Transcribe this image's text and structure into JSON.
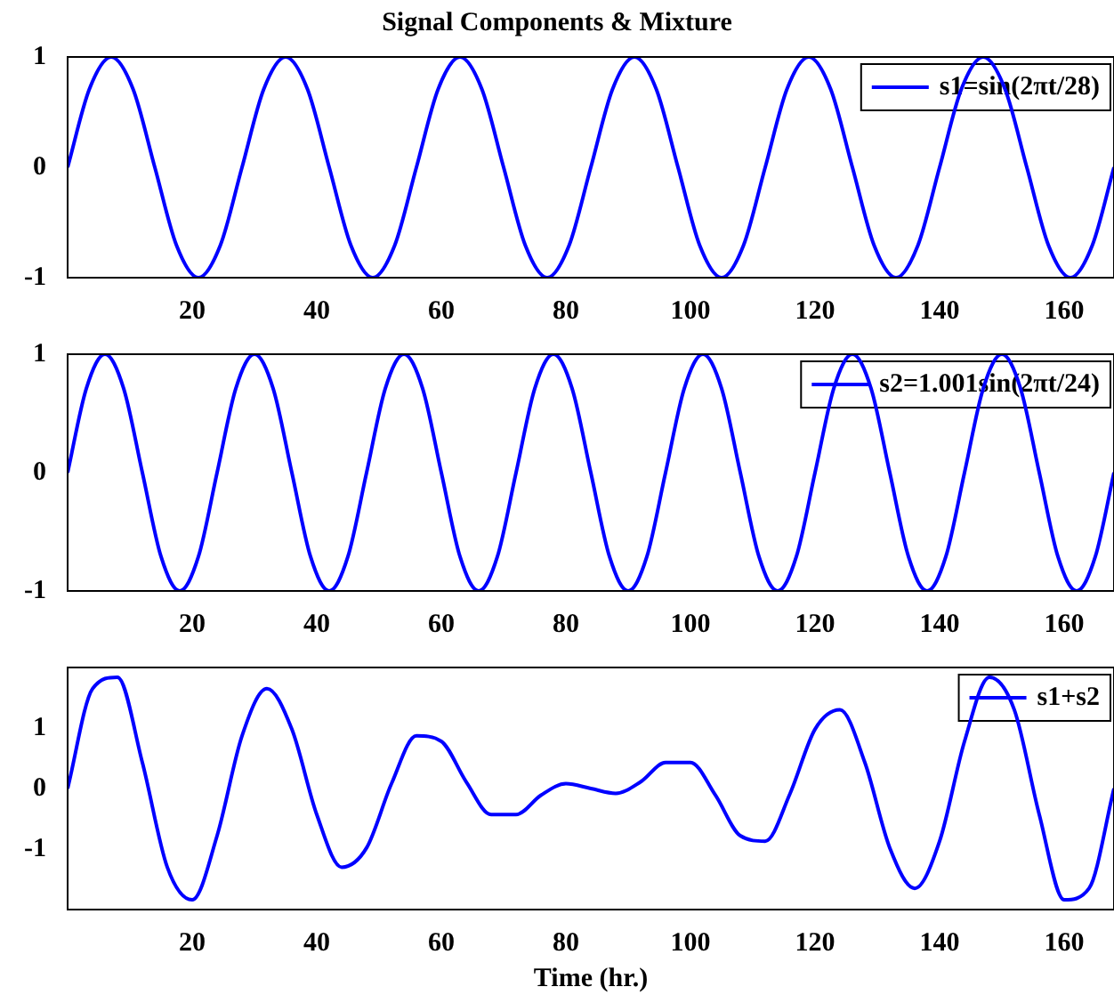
{
  "chart_data": [
    {
      "type": "line",
      "title": "Signal Components & Mixture",
      "legend": "top right",
      "marker": "none",
      "line_style": "solid",
      "grid": false,
      "xlim": [
        0,
        168
      ],
      "xticks": [
        20,
        40,
        60,
        80,
        100,
        120,
        140,
        160
      ],
      "ylim": [
        -1,
        1
      ],
      "yticks": [
        -1,
        0,
        1
      ],
      "x": [
        0,
        3.5,
        7,
        10.5,
        14,
        17.5,
        21,
        24.5,
        28,
        31.5,
        35,
        38.5,
        42,
        45.5,
        49,
        52.5,
        56,
        59.5,
        63,
        66.5,
        70,
        73.5,
        77,
        80.5,
        84,
        87.5,
        91,
        94.5,
        98,
        101.5,
        105,
        108.5,
        112,
        115.5,
        119,
        122.5,
        126,
        129.5,
        133,
        136.5,
        140,
        143.5,
        147,
        150.5,
        154,
        157.5,
        161,
        164.5,
        168
      ],
      "series": [
        {
          "name": "s1=sin(2πt/28)",
          "color": "#0000ff",
          "values": [
            0,
            0.71,
            1,
            0.71,
            0,
            -0.71,
            -1,
            -0.71,
            0,
            0.71,
            1,
            0.71,
            0,
            -0.71,
            -1,
            -0.71,
            0,
            0.71,
            1,
            0.71,
            0,
            -0.71,
            -1,
            -0.71,
            0,
            0.71,
            1,
            0.71,
            0,
            -0.71,
            -1,
            -0.71,
            0,
            0.71,
            1,
            0.71,
            0,
            -0.71,
            -1,
            -0.71,
            0,
            0.71,
            1,
            0.71,
            0,
            -0.71,
            -1,
            -0.71,
            0
          ]
        }
      ]
    },
    {
      "type": "line",
      "legend": "top right",
      "marker": "none",
      "line_style": "solid",
      "grid": false,
      "xlim": [
        0,
        168
      ],
      "xticks": [
        20,
        40,
        60,
        80,
        100,
        120,
        140,
        160
      ],
      "ylim": [
        -1,
        1
      ],
      "yticks": [
        -1,
        0,
        1
      ],
      "x": [
        0,
        3,
        6,
        9,
        12,
        15,
        18,
        21,
        24,
        27,
        30,
        33,
        36,
        39,
        42,
        45,
        48,
        51,
        54,
        57,
        60,
        63,
        66,
        69,
        72,
        75,
        78,
        81,
        84,
        87,
        90,
        93,
        96,
        99,
        102,
        105,
        108,
        111,
        114,
        117,
        120,
        123,
        126,
        129,
        132,
        135,
        138,
        141,
        144,
        147,
        150,
        153,
        156,
        159,
        162,
        165,
        168
      ],
      "series": [
        {
          "name": "s2=1.001sin(2πt/24)",
          "color": "#0000ff",
          "values": [
            0,
            0.71,
            1,
            0.71,
            0,
            -0.71,
            -1,
            -0.71,
            0,
            0.71,
            1,
            0.71,
            0,
            -0.71,
            -1,
            -0.71,
            0,
            0.71,
            1,
            0.71,
            0,
            -0.71,
            -1,
            -0.71,
            0,
            0.71,
            1,
            0.71,
            0,
            -0.71,
            -1,
            -0.71,
            0,
            0.71,
            1,
            0.71,
            0,
            -0.71,
            -1,
            -0.71,
            0,
            0.71,
            1,
            0.71,
            0,
            -0.71,
            -1,
            -0.71,
            0,
            0.71,
            1,
            0.71,
            0,
            -0.71,
            -1,
            -0.71,
            0
          ]
        }
      ]
    },
    {
      "type": "line",
      "xlabel": "Time (hr.)",
      "legend": "top right",
      "marker": "none",
      "line_style": "solid",
      "grid": false,
      "xlim": [
        0,
        168
      ],
      "xticks": [
        20,
        40,
        60,
        80,
        100,
        120,
        140,
        160
      ],
      "ylim": [
        -2,
        2
      ],
      "yticks": [
        -1,
        0,
        1
      ],
      "x": [
        0,
        4,
        8,
        12,
        16,
        20,
        24,
        28,
        32,
        36,
        40,
        44,
        48,
        52,
        56,
        60,
        64,
        68,
        72,
        76,
        80,
        84,
        88,
        92,
        96,
        100,
        104,
        108,
        112,
        116,
        120,
        124,
        128,
        132,
        136,
        140,
        144,
        148,
        152,
        156,
        160,
        164,
        168
      ],
      "series": [
        {
          "name": "s1+s2",
          "color": "#0000ff",
          "values": [
            0,
            1.65,
            1.84,
            0.43,
            -1.3,
            -1.84,
            -0.78,
            0.87,
            1.65,
            0.98,
            -0.43,
            -1.3,
            -0.98,
            0.08,
            0.87,
            0.78,
            0.11,
            -0.43,
            -0.43,
            -0.11,
            0.08,
            0,
            -0.08,
            0.11,
            0.43,
            0.43,
            -0.11,
            -0.78,
            -0.87,
            -0.08,
            0.98,
            1.3,
            0.43,
            -0.98,
            -1.65,
            -0.87,
            0.78,
            1.84,
            1.3,
            -0.43,
            -1.84,
            -1.65,
            0
          ]
        }
      ]
    }
  ]
}
